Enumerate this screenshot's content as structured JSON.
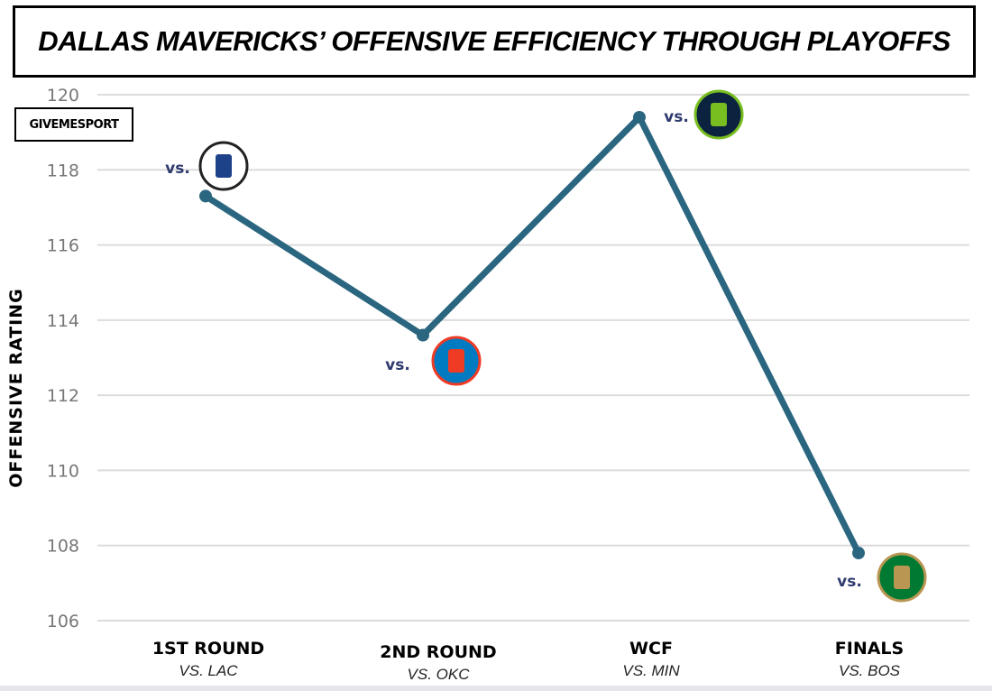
{
  "chart_data": {
    "type": "line",
    "title": "DALLAS MAVERICKS’ OFFENSIVE EFFICIENCY THROUGH PLAYOFFS",
    "ylabel": "OFFENSIVE RATING",
    "xlabel": "",
    "ylim": [
      106,
      120
    ],
    "yticks": [
      106,
      108,
      110,
      112,
      114,
      116,
      118,
      120
    ],
    "grid": true,
    "categories": [
      "1ST ROUND",
      "2ND ROUND",
      "WCF",
      "FINALS"
    ],
    "subcategories": [
      "VS. LAC",
      "VS. OKC",
      "VS. MIN",
      "VS. BOS"
    ],
    "values": [
      117.3,
      113.6,
      119.4,
      107.8
    ],
    "annotations": [
      {
        "text": "vs.",
        "logo": "la-clippers-logo"
      },
      {
        "text": "vs.",
        "logo": "okc-thunder-logo"
      },
      {
        "text": "vs.",
        "logo": "minnesota-timberwolves-logo"
      },
      {
        "text": "vs.",
        "logo": "boston-celtics-logo"
      }
    ],
    "line_color": "#2b6680"
  },
  "brand": "GIVEMESPORT"
}
